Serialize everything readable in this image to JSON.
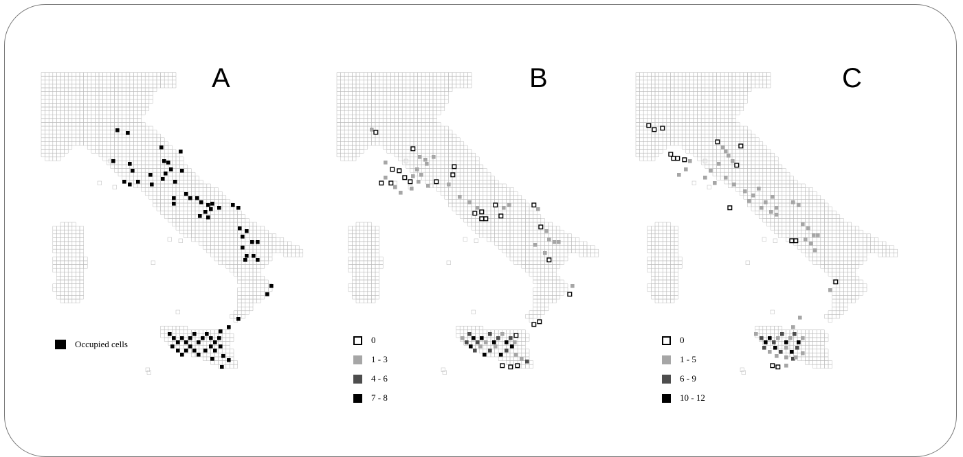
{
  "panels": [
    {
      "id": "A",
      "letter": "A",
      "legend": [
        {
          "label": "Occupied cells",
          "color": "#000000",
          "outline": false
        }
      ]
    },
    {
      "id": "B",
      "letter": "B",
      "legend": [
        {
          "label": "0",
          "color": "#ffffff",
          "outline": true
        },
        {
          "label": "1 - 3",
          "color": "#a6a6a6",
          "outline": false
        },
        {
          "label": "4 - 6",
          "color": "#4d4d4d",
          "outline": false
        },
        {
          "label": "7 - 8",
          "color": "#000000",
          "outline": false
        }
      ]
    },
    {
      "id": "C",
      "letter": "C",
      "legend": [
        {
          "label": "0",
          "color": "#ffffff",
          "outline": true
        },
        {
          "label": "1 - 5",
          "color": "#a6a6a6",
          "outline": false
        },
        {
          "label": "6 - 9",
          "color": "#4d4d4d",
          "outline": false
        },
        {
          "label": "10 - 12",
          "color": "#000000",
          "outline": false
        }
      ]
    }
  ],
  "colors": {
    "grid_line": "#b8b8b8",
    "frame": "#777777"
  }
}
